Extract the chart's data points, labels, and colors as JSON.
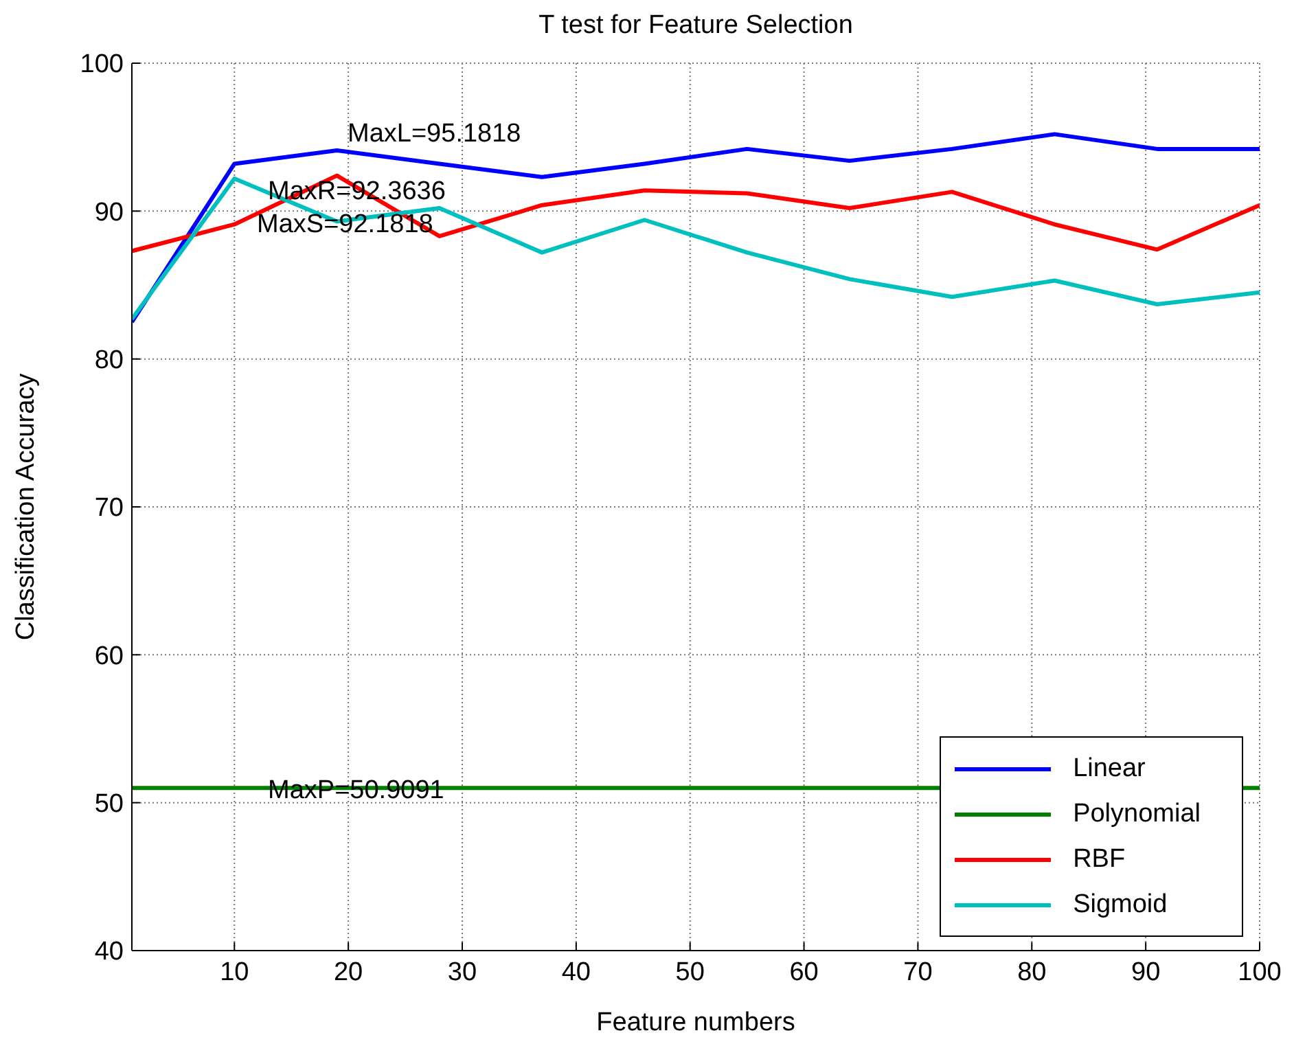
{
  "chart_data": {
    "type": "line",
    "title": "T test for Feature Selection",
    "xlabel": "Feature numbers",
    "ylabel": "Classification Accuracy",
    "x": [
      1,
      10,
      19,
      28,
      37,
      46,
      55,
      64,
      73,
      82,
      91,
      100
    ],
    "series": [
      {
        "name": "Linear",
        "color": "#0000ff",
        "values": [
          82.5,
          93.2,
          94.1,
          93.2,
          92.3,
          93.2,
          94.2,
          93.4,
          94.2,
          95.2,
          94.2,
          94.2
        ]
      },
      {
        "name": "Polynomial",
        "color": "#008000",
        "values": [
          51.0,
          51.0,
          51.0,
          51.0,
          51.0,
          51.0,
          51.0,
          51.0,
          null,
          null,
          null,
          51.0
        ]
      },
      {
        "name": "RBF",
        "color": "#ff0000",
        "values": [
          87.3,
          89.1,
          92.4,
          88.3,
          90.4,
          91.4,
          91.2,
          90.2,
          91.3,
          89.1,
          87.4,
          90.4
        ]
      },
      {
        "name": "Sigmoid",
        "color": "#00bfbf",
        "values": [
          82.7,
          92.2,
          89.3,
          90.2,
          87.2,
          89.4,
          87.2,
          85.4,
          84.2,
          85.3,
          83.7,
          84.5
        ]
      }
    ],
    "annotations": [
      "MaxL=95.1818",
      "MaxR=92.3636",
      "MaxS=92.1818",
      "MaxP=50.9091"
    ],
    "xlim": [
      1,
      100
    ],
    "xticks": [
      10,
      20,
      30,
      40,
      50,
      60,
      70,
      80,
      90,
      100
    ],
    "ylim": [
      40,
      100
    ],
    "yticks": [
      40,
      50,
      60,
      70,
      80,
      90,
      100
    ],
    "grid": true,
    "legend": "bottom right",
    "marker": "none",
    "line_style": "solid"
  }
}
